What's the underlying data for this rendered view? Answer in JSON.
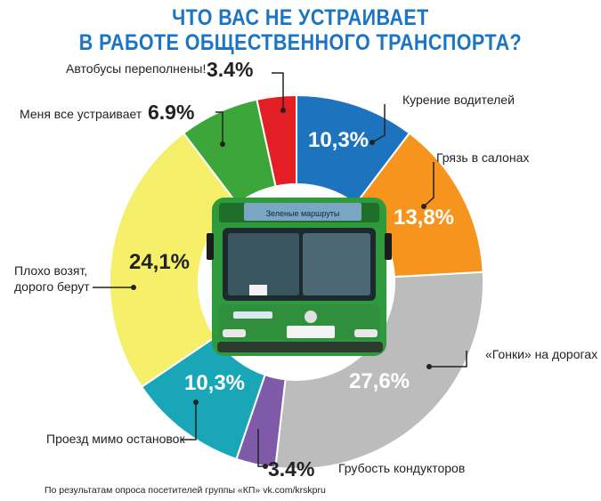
{
  "title_line1": "ЧТО ВАС НЕ УСТРАИВАЕТ",
  "title_line2": "В РАБОТЕ ОБЩЕСТВЕННОГО ТРАНСПОРТА?",
  "footnote": "По результатам опроса посетителей группы «КП» vk.com/krskpru",
  "bus": {
    "route_sign": "Зеленые маршруты"
  },
  "chart_data": {
    "type": "pie",
    "style": "donut",
    "title": "ЧТО ВАС НЕ УСТРАИВАЕТ В РАБОТЕ ОБЩЕСТВЕННОГО ТРАНСПОРТА?",
    "slices": [
      {
        "label": "Курение водителей",
        "value": 10.3,
        "display": "10,3%",
        "color": "#1e73be"
      },
      {
        "label": "Грязь в салонах",
        "value": 13.8,
        "display": "13,8%",
        "color": "#f7941d"
      },
      {
        "label": "«Гонки» на дорогах",
        "value": 27.6,
        "display": "27,6%",
        "color": "#bcbcbc"
      },
      {
        "label": "Грубость кондукторов",
        "value": 3.4,
        "display": "3.4%",
        "color": "#7f5aa8"
      },
      {
        "label": "Проезд мимо остановок",
        "value": 10.3,
        "display": "10,3%",
        "color": "#19a7b8"
      },
      {
        "label": "Плохо возят, дорого берут",
        "value": 24.1,
        "display": "24,1%",
        "color": "#f5ef6a"
      },
      {
        "label": "Меня все устраивает",
        "value": 6.9,
        "display": "6.9%",
        "color": "#3ca63a"
      },
      {
        "label": "Автобусы переполнены!",
        "value": 3.4,
        "display": "3.4%",
        "color": "#e31e24"
      }
    ]
  }
}
